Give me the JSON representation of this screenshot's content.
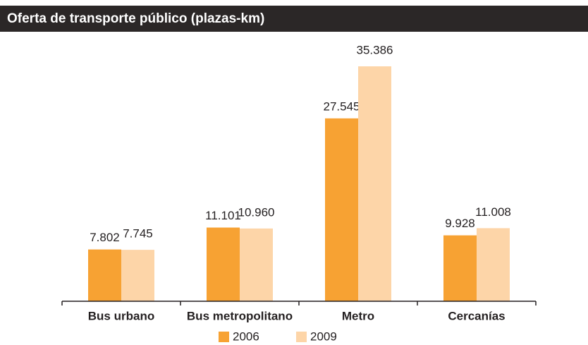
{
  "chart_data": {
    "type": "bar",
    "title": "Oferta de transporte público (plazas-km)",
    "categories": [
      "Bus urbano",
      "Bus metropolitano",
      "Metro",
      "Cercanías"
    ],
    "series": [
      {
        "name": "2006",
        "color": "#f7a233",
        "values": [
          7802,
          11101,
          27545,
          9928
        ],
        "value_labels": [
          "7.802",
          "11.101",
          "27.545",
          "9.928"
        ]
      },
      {
        "name": "2009",
        "color": "#fdd5a8",
        "values": [
          7745,
          10960,
          35386,
          11008
        ],
        "value_labels": [
          "7.745",
          "10.960",
          "35.386",
          "11.008"
        ]
      }
    ]
  }
}
